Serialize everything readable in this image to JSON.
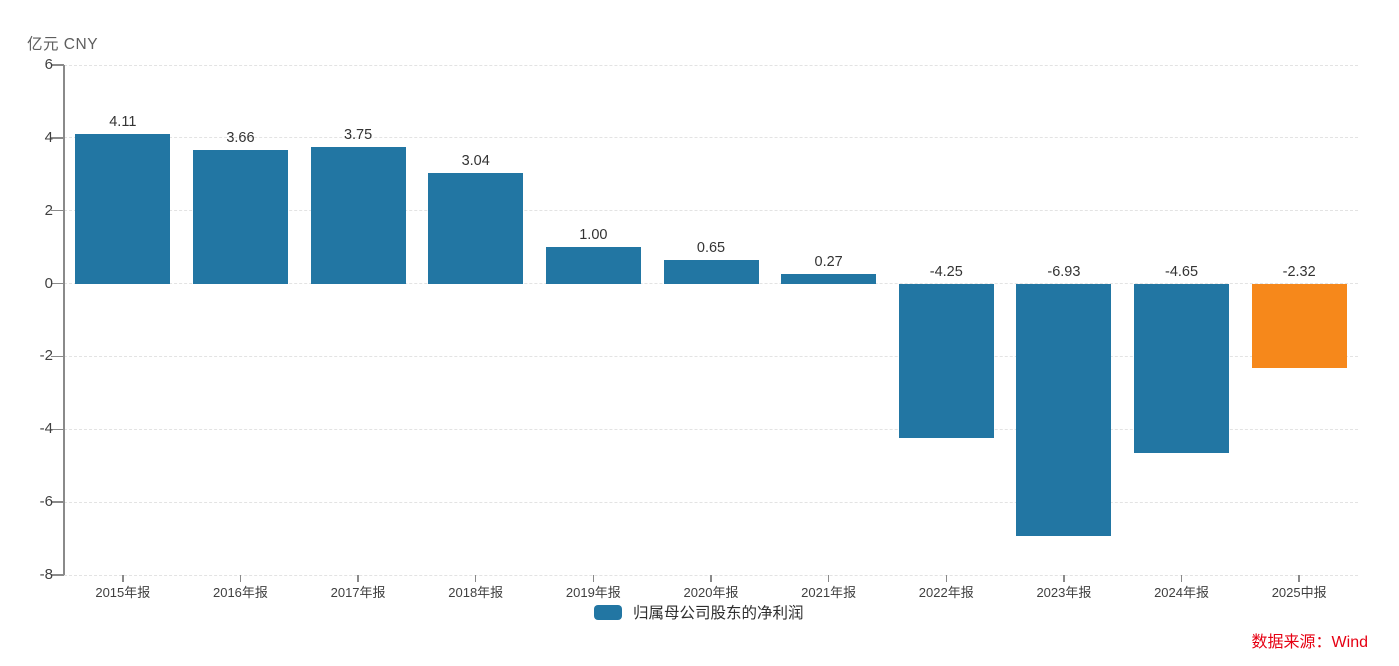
{
  "header": {
    "axis_unit_label": "亿元 CNY"
  },
  "chart_data": {
    "type": "bar",
    "title": "",
    "categories": [
      "2015年报",
      "2016年报",
      "2017年报",
      "2018年报",
      "2019年报",
      "2020年报",
      "2021年报",
      "2022年报",
      "2023年报",
      "2024年报",
      "2025中报"
    ],
    "series": [
      {
        "name": "归属母公司股东的净利润",
        "values": [
          4.11,
          3.66,
          3.75,
          3.04,
          1.0,
          0.65,
          0.27,
          -4.25,
          -6.93,
          -4.65,
          -2.32
        ],
        "value_labels": [
          "4.11",
          "3.66",
          "3.75",
          "3.04",
          "1.00",
          "0.65",
          "0.27",
          "-4.25",
          "-6.93",
          "-4.65",
          "-2.32"
        ]
      }
    ],
    "highlight": {
      "index": 10,
      "color": "#f6881b"
    },
    "bar_color": "#2276a3",
    "ylabel": "亿元 CNY",
    "xlabel": "",
    "ylim": [
      -8,
      6
    ],
    "yticks": [
      6,
      4,
      2,
      0,
      -2,
      -4,
      -6,
      -8
    ],
    "grid": true,
    "legend_position": "bottom-center"
  },
  "legend": {
    "label": "归属母公司股东的净利润",
    "swatch_color": "#2276a3"
  },
  "footer": {
    "source_label": "数据来源：Wind"
  },
  "colors": {
    "bar_default": "#2276a3",
    "bar_highlight": "#f6881b",
    "source_text": "#e60012",
    "axis_line": "#8a8a8a",
    "gridline": "#e3e3e3",
    "tick_label": "#404040",
    "value_label": "#333333"
  }
}
